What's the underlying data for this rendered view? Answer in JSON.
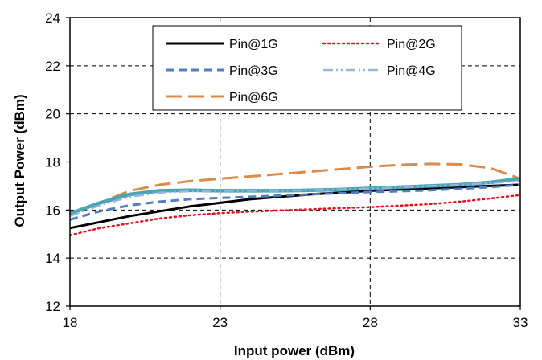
{
  "chart_data": {
    "type": "line",
    "xlabel": "Input power (dBm)",
    "ylabel": "Output Power (dBm)",
    "xlim": [
      18,
      33
    ],
    "ylim": [
      12,
      24
    ],
    "xticks": [
      18,
      23,
      28,
      33
    ],
    "yticks": [
      12,
      14,
      16,
      18,
      20,
      22,
      24
    ],
    "grid": true,
    "grid_style": "dashed",
    "legend_position": "top-center",
    "series": [
      {
        "name": "Pin@1G",
        "color": "#000000",
        "style": "solid",
        "x": [
          18,
          19,
          20,
          21,
          22,
          23,
          24,
          25,
          26,
          27,
          28,
          29,
          30,
          31,
          32,
          33
        ],
        "y": [
          15.25,
          15.5,
          15.75,
          15.95,
          16.15,
          16.3,
          16.45,
          16.55,
          16.65,
          16.72,
          16.8,
          16.85,
          16.9,
          16.95,
          17.0,
          17.05
        ]
      },
      {
        "name": "Pin@2G",
        "color": "#E8101E",
        "style": "dotted",
        "x": [
          18,
          19,
          20,
          21,
          22,
          23,
          24,
          25,
          26,
          27,
          28,
          29,
          30,
          31,
          32,
          33
        ],
        "y": [
          14.95,
          15.25,
          15.45,
          15.65,
          15.78,
          15.87,
          15.93,
          15.98,
          16.03,
          16.08,
          16.12,
          16.18,
          16.25,
          16.35,
          16.48,
          16.62
        ]
      },
      {
        "name": "Pin@3G",
        "color": "#4F7FC0",
        "style": "dashed",
        "x": [
          18,
          19,
          20,
          21,
          22,
          23,
          24,
          25,
          26,
          27,
          28,
          29,
          30,
          31,
          32,
          33
        ],
        "y": [
          15.6,
          15.95,
          16.2,
          16.35,
          16.45,
          16.5,
          16.55,
          16.6,
          16.65,
          16.7,
          16.75,
          16.78,
          16.82,
          16.88,
          16.95,
          17.05
        ]
      },
      {
        "name": "Pin@4G",
        "color": "#92B8E0",
        "style": "dash-dot-dot",
        "x": [
          18,
          19,
          20,
          21,
          22,
          23,
          24,
          25,
          26,
          27,
          28,
          29,
          30,
          31,
          32,
          33
        ],
        "y": [
          15.75,
          16.2,
          16.55,
          16.72,
          16.78,
          16.8,
          16.8,
          16.8,
          16.82,
          16.85,
          16.9,
          16.95,
          17.0,
          17.05,
          17.12,
          17.2
        ]
      },
      {
        "name": "Pin@6G",
        "color": "#DC8A4A",
        "style": "long-dash",
        "x": [
          18,
          19,
          20,
          21,
          22,
          23,
          24,
          25,
          26,
          27,
          28,
          29,
          30,
          31,
          32,
          33
        ],
        "y": [
          15.8,
          16.3,
          16.8,
          17.05,
          17.2,
          17.3,
          17.4,
          17.5,
          17.6,
          17.7,
          17.8,
          17.88,
          17.92,
          17.9,
          17.75,
          17.3
        ]
      },
      {
        "color": "#4BA3B8",
        "style": "solid-thick",
        "x": [
          18,
          19,
          20,
          21,
          22,
          23,
          24,
          25,
          26,
          27,
          28,
          29,
          30,
          31,
          32,
          33
        ],
        "y": [
          15.85,
          16.3,
          16.65,
          16.8,
          16.82,
          16.8,
          16.8,
          16.8,
          16.82,
          16.85,
          16.9,
          16.95,
          17.0,
          17.05,
          17.15,
          17.3
        ]
      }
    ]
  }
}
